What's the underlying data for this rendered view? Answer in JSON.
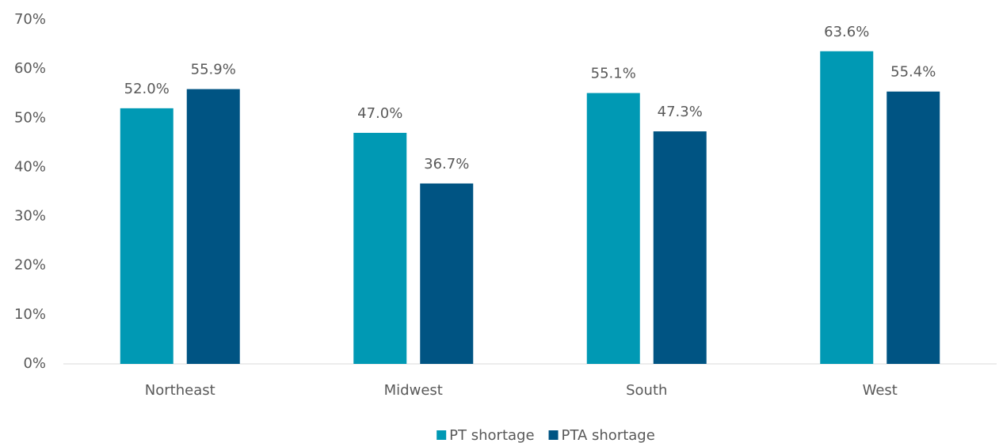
{
  "chart_data": {
    "type": "bar",
    "categories": [
      "Northeast",
      "Midwest",
      "South",
      "West"
    ],
    "series": [
      {
        "name": "PT shortage",
        "color": "#0099b4",
        "values": [
          52.0,
          47.0,
          55.1,
          63.6
        ],
        "value_labels": [
          "52.0%",
          "47.0%",
          "55.1%",
          "63.6%"
        ]
      },
      {
        "name": "PTA shortage",
        "color": "#005483",
        "values": [
          55.9,
          36.7,
          47.3,
          55.4
        ],
        "value_labels": [
          "55.9%",
          "36.7%",
          "47.3%",
          "55.4%"
        ]
      }
    ],
    "ylim": [
      0,
      70
    ],
    "yticks": [
      {
        "value": 0,
        "label": "0%"
      },
      {
        "value": 10,
        "label": "10%"
      },
      {
        "value": 20,
        "label": "20%"
      },
      {
        "value": 30,
        "label": "30%"
      },
      {
        "value": 40,
        "label": "40%"
      },
      {
        "value": 50,
        "label": "50%"
      },
      {
        "value": 60,
        "label": "60%"
      },
      {
        "value": 70,
        "label": "70%"
      }
    ],
    "grid": false,
    "legend": "bottom"
  }
}
